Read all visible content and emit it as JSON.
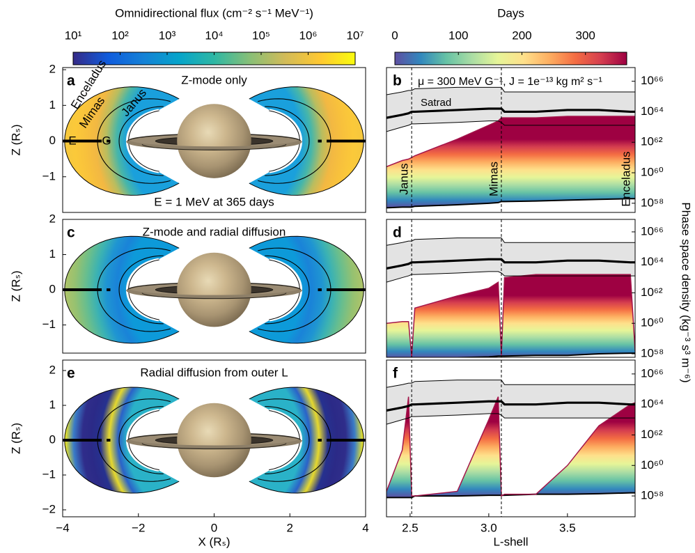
{
  "chart_data": [
    {
      "type": "colorbar",
      "title": "Omnidirectional flux (cm⁻² s⁻¹ MeV⁻¹)",
      "log_scale": true,
      "clim": [
        10,
        10000000
      ],
      "ticks": [
        {
          "value": 10,
          "label": "10¹"
        },
        {
          "value": 100,
          "label": "10²"
        },
        {
          "value": 1000,
          "label": "10³"
        },
        {
          "value": 10000,
          "label": "10⁴"
        },
        {
          "value": 100000,
          "label": "10⁵"
        },
        {
          "value": 1000000,
          "label": "10⁶"
        },
        {
          "value": 10000000,
          "label": "10⁷"
        }
      ],
      "colors": [
        "#352a87",
        "#0f5cdd",
        "#1481d6",
        "#06a4ca",
        "#2eb7a4",
        "#87bf77",
        "#d1bb59",
        "#fec832",
        "#f9fb0e"
      ]
    },
    {
      "type": "colorbar",
      "title": "Days",
      "clim": [
        0,
        365
      ],
      "ticks": [
        0,
        100,
        200,
        300
      ],
      "colors": [
        "#5e4fa2",
        "#3288bd",
        "#66c2a5",
        "#abdda4",
        "#e6f598",
        "#fee08b",
        "#fdae61",
        "#f46d43",
        "#d53e4f",
        "#9e0142"
      ]
    },
    {
      "type": "belt-map",
      "panel_label": "a",
      "title": "Z-mode only",
      "subtitle": "E = 1 MeV at 365 days",
      "y_label": "Z (Rₛ)",
      "xlim": [
        -4,
        4
      ],
      "ylim": [
        -2,
        2.06
      ],
      "yticks": [
        {
          "value": -1,
          "label": "−1"
        },
        0,
        1,
        2
      ],
      "annotations": [
        "Enceladus",
        "Mimas",
        "Janus",
        "E",
        "G"
      ],
      "belt_colors": [
        "#1aa0dc",
        "#47b6a9",
        "#b9bd5f",
        "#f2b843",
        "#f8c13c",
        "#fbc93a",
        "#f5c83e"
      ]
    },
    {
      "type": "line",
      "panel_label": "b",
      "log_scale": true,
      "xlim": [
        2.35,
        3.93
      ],
      "ylim": [
        2.5e+57,
        7.9e+66
      ],
      "yticks": [
        {
          "value": 1e+58,
          "label": "10⁵⁸"
        },
        {
          "value": 1e+60,
          "label": "10⁶⁰"
        },
        {
          "value": 1e+62,
          "label": "10⁶²"
        },
        {
          "value": 1e+64,
          "label": "10⁶⁴"
        },
        {
          "value": 1e+66,
          "label": "10⁶⁶"
        }
      ],
      "annotations": [
        "μ = 300 MeV G⁻¹, J = 1e⁻¹³ kg m² s⁻¹",
        "Satrad"
      ],
      "x": [
        2.35,
        2.45,
        2.49,
        2.51,
        2.53,
        2.8,
        3.0,
        3.06,
        3.08,
        3.1,
        3.3,
        3.5,
        3.7,
        3.9,
        3.93
      ],
      "band": {
        "color": "#e3e3e3",
        "median": [
          4e+63,
          6.3e+63,
          7.9e+63,
          1e+64,
          1e+64,
          1.3e+64,
          1.6e+64,
          1.6e+64,
          1.6e+64,
          1e+64,
          1e+64,
          1.3e+64,
          1.3e+64,
          1e+64,
          1e+64
        ],
        "upper": [
          1.3e+65,
          2e+65,
          2.5e+65,
          2.5e+65,
          3.2e+65,
          4e+65,
          4e+65,
          4e+65,
          4e+65,
          2e+65,
          2e+65,
          2e+65,
          2e+65,
          2e+65,
          2e+65
        ],
        "lower": [
          5e+62,
          1e+63,
          1.3e+63,
          1.6e+63,
          1.6e+63,
          2e+63,
          2.5e+63,
          2.5e+63,
          2e+63,
          1.3e+63,
          1.3e+63,
          1.3e+63,
          1.3e+63,
          1.3e+63,
          1.3e+63
        ]
      },
      "series": [
        {
          "color": "#000000",
          "values": [
            5e+57,
            5.6e+57,
            5.6e+57,
            5.6e+57,
            6.3e+57,
            7.9e+57,
            1e+58,
            1.1e+58,
            1.3e+58,
            1.3e+58,
            1.4e+58,
            1.6e+58,
            1.8e+58,
            2e+58,
            2e+58
          ]
        },
        {
          "color": "#a3154a",
          "fill": true,
          "values": [
            2.5e+60,
            6.3e+60,
            7.9e+60,
            1e+61,
            1.3e+61,
            1.6e+62,
            1.3e+63,
            2.5e+63,
            4e+63,
            4e+63,
            4e+63,
            5e+63,
            5e+63,
            5e+63,
            5e+63
          ]
        }
      ],
      "vlines": [
        {
          "x": 2.51,
          "label": "Janus"
        },
        {
          "x": 3.08,
          "label": "Mimas"
        },
        {
          "x": 3.95,
          "label": "Enceladus"
        }
      ]
    },
    {
      "type": "belt-map",
      "panel_label": "c",
      "title": "Z-mode and radial diffusion",
      "y_label": "Z (Rₛ)",
      "xlim": [
        -4,
        4
      ],
      "ylim": [
        -1.8,
        2
      ],
      "yticks": [
        {
          "value": -1,
          "label": "−1"
        },
        0,
        1,
        2
      ],
      "belt_colors": [
        "#0d9ad9",
        "#1a83d8",
        "#1f95d2",
        "#3bb2b3",
        "#68be8e",
        "#95c171",
        "#b0c468"
      ]
    },
    {
      "type": "line",
      "panel_label": "d",
      "log_scale": true,
      "xlim": [
        2.35,
        3.93
      ],
      "ylim": [
        5.9e+57,
        6.6e+66
      ],
      "y_label": "Phase space density (kg⁻³ s³ m⁻⁶)",
      "yticks": [
        {
          "value": 1e+58,
          "label": "10⁵⁸"
        },
        {
          "value": 1e+60,
          "label": "10⁶⁰"
        },
        {
          "value": 1e+62,
          "label": "10⁶²"
        },
        {
          "value": 1e+64,
          "label": "10⁶⁴"
        },
        {
          "value": 1e+66,
          "label": "10⁶⁶"
        }
      ],
      "x": [
        2.35,
        2.45,
        2.49,
        2.51,
        2.53,
        2.8,
        3.0,
        3.06,
        3.08,
        3.1,
        3.3,
        3.5,
        3.7,
        3.9,
        3.93
      ],
      "band": {
        "color": "#e3e3e3",
        "median": [
          4e+63,
          6.3e+63,
          7.9e+63,
          1e+64,
          1e+64,
          1.3e+64,
          1.6e+64,
          1.6e+64,
          1.6e+64,
          1e+64,
          1e+64,
          1.3e+64,
          1.3e+64,
          1e+64,
          1e+64
        ],
        "upper": [
          1.3e+65,
          2e+65,
          2.5e+65,
          2.5e+65,
          3.2e+65,
          4e+65,
          4e+65,
          4e+65,
          4e+65,
          2e+65,
          2e+65,
          2e+65,
          2e+65,
          2e+65,
          2e+65
        ],
        "lower": [
          5e+62,
          1e+63,
          1.3e+63,
          1.6e+63,
          1.6e+63,
          2e+63,
          2.5e+63,
          2.5e+63,
          2e+63,
          1.3e+63,
          1.3e+63,
          1.3e+63,
          1.3e+63,
          1.3e+63,
          1.3e+63
        ]
      },
      "series": [
        {
          "color": "#000000",
          "values": [
            5e+57,
            5e+57,
            5e+57,
            5e+57,
            5e+57,
            5.6e+57,
            6.3e+57,
            7.1e+57,
            7.1e+57,
            7.1e+57,
            7.9e+57,
            7.9e+57,
            1e+58,
            1.1e+58,
            1.1e+58
          ]
        },
        {
          "color": "#a3154a",
          "fill": true,
          "values": [
            1e+60,
            1.3e+60,
            1.3e+60,
            6.3e+57,
            1e+61,
            6.3e+61,
            2e+62,
            5e+62,
            7.9e+57,
            1e+63,
            1.6e+63,
            1.6e+63,
            1.6e+63,
            1.6e+63,
            1.6e+58
          ]
        }
      ],
      "vlines": [
        {
          "x": 2.51
        },
        {
          "x": 3.08
        }
      ]
    },
    {
      "type": "belt-map",
      "panel_label": "e",
      "title": "Radial diffusion from outer L",
      "y_label": "Z (Rₛ)",
      "x_label": "X (Rₛ)",
      "xlim": [
        -4,
        4
      ],
      "ylim": [
        -2.2,
        2.3
      ],
      "yticks": [
        {
          "value": -2,
          "label": "−2"
        },
        {
          "value": -1,
          "label": "−1"
        },
        0,
        1,
        2
      ],
      "xticks": [
        {
          "value": -4,
          "label": "−4"
        },
        {
          "value": -2,
          "label": "−2"
        },
        0,
        2,
        4
      ],
      "belt_colors": [
        "#2ab2c8",
        "#2a62c8",
        "#e6d92e",
        "#26318f",
        "#2b2a87",
        "#2f2d8a",
        "#3a7cc8",
        "#fcee17"
      ]
    },
    {
      "type": "line",
      "panel_label": "f",
      "log_scale": true,
      "xlim": [
        2.35,
        3.93
      ],
      "ylim": [
        4.3e+56,
        8.1e+66
      ],
      "x_label": "L-shell",
      "yticks": [
        {
          "value": 1e+58,
          "label": "10⁵⁸"
        },
        {
          "value": 1e+60,
          "label": "10⁶⁰"
        },
        {
          "value": 1e+62,
          "label": "10⁶²"
        },
        {
          "value": 1e+64,
          "label": "10⁶⁴"
        },
        {
          "value": 1e+66,
          "label": "10⁶⁶"
        }
      ],
      "xticks": [
        2.5,
        {
          "value": 3,
          "label": "3.0"
        },
        3.5
      ],
      "x": [
        2.35,
        2.45,
        2.49,
        2.51,
        2.53,
        2.8,
        3.0,
        3.06,
        3.08,
        3.1,
        3.3,
        3.5,
        3.7,
        3.9,
        3.93
      ],
      "band": {
        "color": "#e3e3e3",
        "median": [
          4e+63,
          6.3e+63,
          7.9e+63,
          1e+64,
          1e+64,
          1.3e+64,
          1.6e+64,
          1.6e+64,
          1.6e+64,
          1e+64,
          1e+64,
          1.3e+64,
          1.3e+64,
          1e+64,
          1e+64
        ],
        "upper": [
          1.3e+65,
          2e+65,
          2.5e+65,
          2.5e+65,
          3.2e+65,
          4e+65,
          4e+65,
          4e+65,
          4e+65,
          2e+65,
          2e+65,
          2e+65,
          2e+65,
          2e+65,
          2e+65
        ],
        "lower": [
          5e+62,
          1e+63,
          1.3e+63,
          1.6e+63,
          1.6e+63,
          2e+63,
          2.5e+63,
          2.5e+63,
          2e+63,
          1.3e+63,
          1.3e+63,
          1.3e+63,
          1.3e+63,
          1.3e+63,
          1.3e+63
        ]
      },
      "series": [
        {
          "color": "#000000",
          "values": [
            7.9e+57,
            7.9e+57,
            7.9e+57,
            7.9e+57,
            1e+58,
            1e+58,
            1.1e+58,
            1.1e+58,
            1.1e+58,
            1.1e+58,
            1.3e+58,
            1.3e+58,
            1.4e+58,
            1.6e+58,
            1.6e+58
          ]
        },
        {
          "color": "#a3154a",
          "fill": true,
          "values": [
            2e+58,
            1e+61,
            3.2e+64,
            1e+58,
            1e+58,
            2e+58,
            1e+63,
            3.2e+64,
            1e+58,
            1.3e+58,
            1.3e+58,
            1e+60,
            4e+62,
            1e+64,
            1.3e+64
          ]
        }
      ],
      "vlines": [
        {
          "x": 2.51
        },
        {
          "x": 3.08
        }
      ]
    }
  ]
}
